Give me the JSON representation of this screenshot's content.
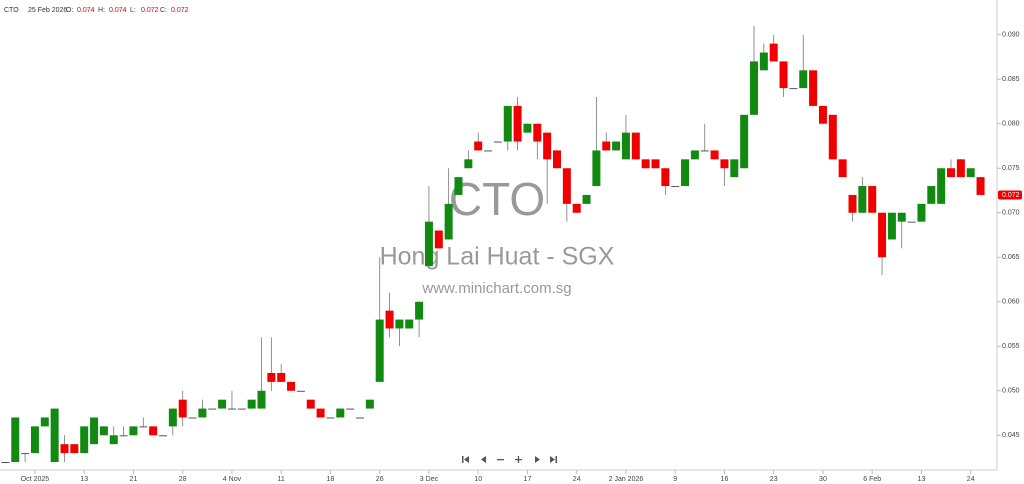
{
  "chart_data": {
    "type": "candlestick",
    "header": {
      "symbol": "CTO",
      "date": "25 Feb 2026",
      "fields": [
        {
          "label": "O:",
          "value": 0.074
        },
        {
          "label": "H:",
          "value": 0.074
        },
        {
          "label": "L:",
          "value": 0.072
        },
        {
          "label": "C:",
          "value": 0.072
        }
      ]
    },
    "watermark": {
      "symbol": "CTO",
      "name": "Hong Lai Huat - SGX",
      "site": "www.minichart.com.sg"
    },
    "categories": [
      null,
      null,
      null,
      "Oct 2025",
      null,
      null,
      null,
      null,
      "13",
      null,
      null,
      null,
      null,
      "21",
      null,
      null,
      null,
      null,
      "28",
      null,
      null,
      null,
      null,
      "4 Nov",
      null,
      null,
      null,
      null,
      "11",
      null,
      null,
      null,
      null,
      "18",
      null,
      null,
      null,
      null,
      "26",
      null,
      null,
      null,
      null,
      "3 Dec",
      null,
      null,
      null,
      null,
      "10",
      null,
      null,
      null,
      null,
      "17",
      null,
      null,
      null,
      null,
      "24",
      null,
      null,
      null,
      null,
      "2 Jan 2026",
      null,
      null,
      null,
      null,
      "9",
      null,
      null,
      null,
      null,
      "16",
      null,
      null,
      null,
      null,
      "23",
      null,
      null,
      null,
      null,
      "30",
      null,
      null,
      null,
      null,
      "6 Feb",
      null,
      null,
      null,
      null,
      "13",
      null,
      null,
      null,
      null,
      "24",
      null
    ],
    "open": [
      0.042,
      0.042,
      0.043,
      0.043,
      0.046,
      0.042,
      0.044,
      0.044,
      0.043,
      0.044,
      0.045,
      0.044,
      0.045,
      0.045,
      0.046,
      0.046,
      0.045,
      0.046,
      0.049,
      0.047,
      0.047,
      0.048,
      0.048,
      0.048,
      0.048,
      0.048,
      0.048,
      0.052,
      0.052,
      0.051,
      0.05,
      0.049,
      0.048,
      0.047,
      0.047,
      0.048,
      0.047,
      0.048,
      0.051,
      0.059,
      0.057,
      0.057,
      0.058,
      0.064,
      0.068,
      0.067,
      0.072,
      0.075,
      0.078,
      0.077,
      0.078,
      0.078,
      0.082,
      0.079,
      0.08,
      0.079,
      0.077,
      0.075,
      0.071,
      0.071,
      0.073,
      0.078,
      0.077,
      0.076,
      0.079,
      0.076,
      0.076,
      0.075,
      0.073,
      0.073,
      0.076,
      0.077,
      0.077,
      0.076,
      0.074,
      0.075,
      0.081,
      0.086,
      0.089,
      0.087,
      0.084,
      0.084,
      0.086,
      0.082,
      0.081,
      0.076,
      0.072,
      0.07,
      0.073,
      0.07,
      0.067,
      0.069,
      0.069,
      0.069,
      0.071,
      0.071,
      0.075,
      0.076,
      0.074,
      0.074
    ],
    "high": [
      0.042,
      0.047,
      0.043,
      0.046,
      0.047,
      0.048,
      0.045,
      0.044,
      0.046,
      0.047,
      0.046,
      0.046,
      0.046,
      0.046,
      0.047,
      0.046,
      0.045,
      0.048,
      0.05,
      0.047,
      0.049,
      0.048,
      0.049,
      0.05,
      0.048,
      0.049,
      0.056,
      0.056,
      0.053,
      0.051,
      0.05,
      0.049,
      0.048,
      0.047,
      0.048,
      0.048,
      0.047,
      0.049,
      0.065,
      0.061,
      0.058,
      0.058,
      0.06,
      0.073,
      0.068,
      0.075,
      0.074,
      0.077,
      0.079,
      0.077,
      0.078,
      0.082,
      0.083,
      0.08,
      0.08,
      0.079,
      0.077,
      0.075,
      0.071,
      0.072,
      0.083,
      0.079,
      0.078,
      0.081,
      0.079,
      0.076,
      0.076,
      0.075,
      0.073,
      0.076,
      0.077,
      0.08,
      0.077,
      0.076,
      0.076,
      0.081,
      0.091,
      0.089,
      0.09,
      0.087,
      0.084,
      0.09,
      0.086,
      0.082,
      0.081,
      0.076,
      0.072,
      0.074,
      0.073,
      0.07,
      0.07,
      0.07,
      0.069,
      0.071,
      0.073,
      0.075,
      0.076,
      0.076,
      0.075,
      0.074
    ],
    "low": [
      0.042,
      0.042,
      0.042,
      0.043,
      0.046,
      0.042,
      0.042,
      0.043,
      0.043,
      0.044,
      0.045,
      0.044,
      0.045,
      0.045,
      0.046,
      0.045,
      0.045,
      0.045,
      0.046,
      0.047,
      0.047,
      0.048,
      0.048,
      0.048,
      0.048,
      0.048,
      0.048,
      0.05,
      0.051,
      0.05,
      0.05,
      0.048,
      0.047,
      0.047,
      0.047,
      0.048,
      0.047,
      0.048,
      0.051,
      0.056,
      0.055,
      0.057,
      0.056,
      0.064,
      0.066,
      0.067,
      0.072,
      0.075,
      0.077,
      0.077,
      0.078,
      0.077,
      0.077,
      0.079,
      0.076,
      0.071,
      0.075,
      0.069,
      0.07,
      0.071,
      0.073,
      0.077,
      0.077,
      0.076,
      0.076,
      0.075,
      0.075,
      0.072,
      0.073,
      0.073,
      0.076,
      0.077,
      0.076,
      0.073,
      0.074,
      0.075,
      0.081,
      0.086,
      0.087,
      0.083,
      0.084,
      0.084,
      0.082,
      0.08,
      0.076,
      0.074,
      0.069,
      0.07,
      0.07,
      0.063,
      0.067,
      0.066,
      0.069,
      0.069,
      0.071,
      0.071,
      0.074,
      0.074,
      0.074,
      0.072
    ],
    "close": [
      0.042,
      0.047,
      0.043,
      0.046,
      0.047,
      0.048,
      0.043,
      0.043,
      0.046,
      0.047,
      0.046,
      0.045,
      0.045,
      0.046,
      0.046,
      0.045,
      0.045,
      0.048,
      0.047,
      0.047,
      0.048,
      0.048,
      0.049,
      0.048,
      0.048,
      0.049,
      0.05,
      0.051,
      0.051,
      0.05,
      0.05,
      0.048,
      0.047,
      0.047,
      0.048,
      0.048,
      0.047,
      0.049,
      0.058,
      0.057,
      0.058,
      0.058,
      0.06,
      0.069,
      0.066,
      0.071,
      0.074,
      0.076,
      0.077,
      0.077,
      0.078,
      0.082,
      0.078,
      0.08,
      0.078,
      0.076,
      0.075,
      0.071,
      0.07,
      0.072,
      0.077,
      0.077,
      0.078,
      0.079,
      0.076,
      0.075,
      0.075,
      0.073,
      0.073,
      0.076,
      0.077,
      0.077,
      0.076,
      0.075,
      0.076,
      0.081,
      0.087,
      0.088,
      0.087,
      0.084,
      0.084,
      0.086,
      0.082,
      0.08,
      0.076,
      0.074,
      0.07,
      0.073,
      0.07,
      0.065,
      0.07,
      0.07,
      0.069,
      0.071,
      0.073,
      0.075,
      0.074,
      0.074,
      0.075,
      0.072
    ],
    "up_color": "#128a12",
    "down_color": "#f00000",
    "last_price": 0.072,
    "ylim": [
      0.0411,
      0.0939
    ],
    "yticks": [
      0.045,
      {
        "value": 0.05,
        "label": "0.050"
      },
      0.055,
      {
        "value": 0.06,
        "label": "0.060"
      },
      0.065,
      {
        "value": 0.07,
        "label": "0.070"
      },
      0.075,
      {
        "value": 0.08,
        "label": "0.080"
      },
      0.085,
      {
        "value": 0.09,
        "label": "0.090"
      }
    ]
  }
}
